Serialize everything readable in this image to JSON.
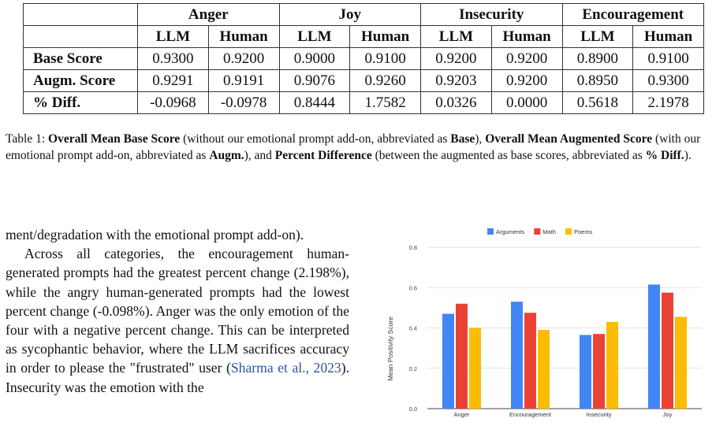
{
  "table": {
    "group_headers": [
      "Anger",
      "Joy",
      "Insecurity",
      "Encouragement"
    ],
    "sub_headers": [
      "LLM",
      "Human",
      "LLM",
      "Human",
      "LLM",
      "Human",
      "LLM",
      "Human"
    ],
    "rows": [
      {
        "label": "Base Score",
        "cells": [
          "0.9300",
          "0.9200",
          "0.9000",
          "0.9100",
          "0.9200",
          "0.9200",
          "0.8900",
          "0.9100"
        ]
      },
      {
        "label": "Augm. Score",
        "cells": [
          "0.9291",
          "0.9191",
          "0.9076",
          "0.9260",
          "0.9203",
          "0.9200",
          "0.8950",
          "0.9300"
        ]
      },
      {
        "label": "% Diff.",
        "cells": [
          "-0.0968",
          "-0.0978",
          "0.8444",
          "1.7582",
          "0.0326",
          "0.0000",
          "0.5618",
          "2.1978"
        ]
      }
    ]
  },
  "caption": {
    "label": "Table 1: ",
    "b1": "Overall Mean Base Score",
    "t1": " (without our emotional prompt add-on, abbreviated as ",
    "b2": "Base",
    "t2": "), ",
    "b3": "Overall Mean Augmented Score",
    "t3": " (with our emotional prompt add-on, abbreviated as ",
    "b4": "Augm.",
    "t4": "), and ",
    "b5": "Percent Difference",
    "t5": " (between the augmented as base scores, abbreviated as ",
    "b6": "% Diff.",
    "t6": ")."
  },
  "body": {
    "p1": "ment/degradation with the emotional prompt add-on).",
    "p2_text": "Across all categories, the encouragement human-generated prompts had the greatest percent change (2.198%), while the angry human-generated prompts had the lowest percent change (-0.098%). Anger was the only emotion of the four with a negative percent change. This can be interpreted as sycophantic behavior, where the LLM sacrifices accuracy in order to please the \"frustrated\" user (",
    "p2_cite": "Sharma et al., 2023",
    "p2_tail": "). Insecurity was the emotion with the"
  },
  "chart_data": {
    "type": "bar",
    "categories": [
      "Anger",
      "Encouragement",
      "Insecurity",
      "Joy"
    ],
    "series": [
      {
        "name": "Arguments",
        "color": "#4285f4",
        "values": [
          0.47,
          0.53,
          0.365,
          0.615
        ]
      },
      {
        "name": "Math",
        "color": "#ea4335",
        "values": [
          0.52,
          0.475,
          0.37,
          0.575
        ]
      },
      {
        "name": "Poems",
        "color": "#fbbc04",
        "values": [
          0.4,
          0.39,
          0.43,
          0.455
        ]
      }
    ],
    "ylabel": "Mean Positivity Score",
    "xlabel": "",
    "ylim": [
      0,
      0.8
    ],
    "yticks": [
      0.0,
      0.2,
      0.4,
      0.6,
      0.8
    ],
    "ytick_labels": [
      "0.0",
      "0.2",
      "0.4",
      "0.6",
      "0.8"
    ],
    "legend_position": "top",
    "grid": true
  }
}
